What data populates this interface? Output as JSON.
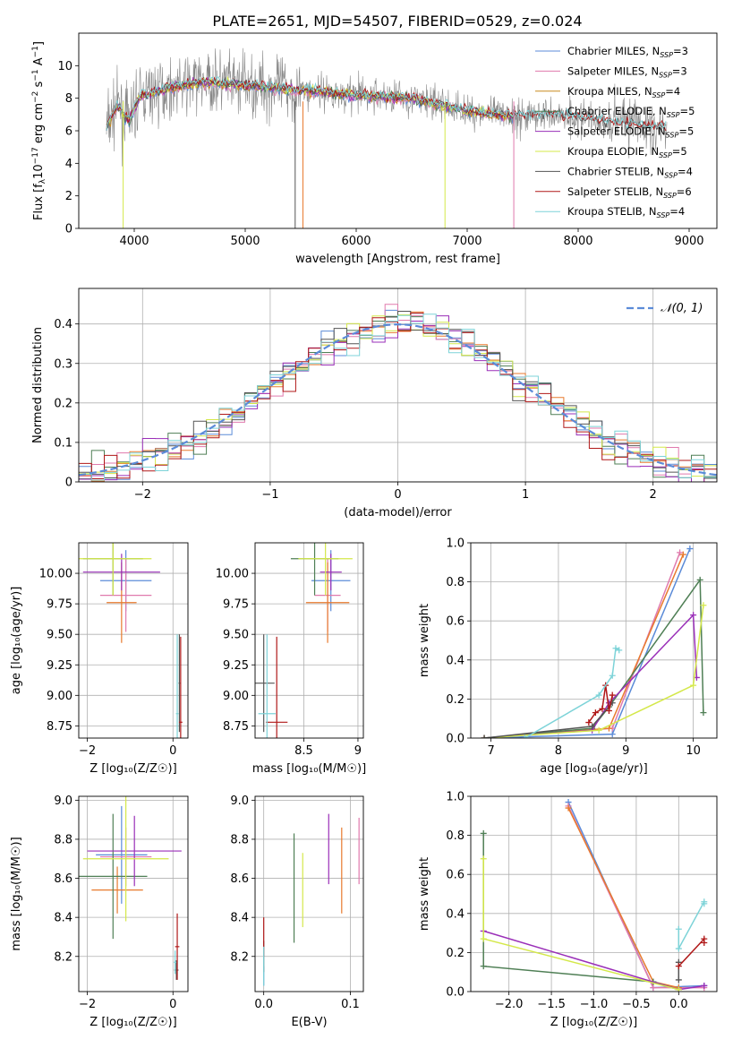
{
  "figure": {
    "title": "PLATE=2651, MJD=54507, FIBERID=0529, z=0.024"
  },
  "colors": {
    "Chabrier MILES": "#5b8bd8",
    "Salpeter MILES": "#e07aad",
    "Kroupa MILES": "#c98a1e",
    "Chabrier ELODIE": "#4f7f55",
    "Salpeter ELODIE": "#9a2fb8",
    "Kroupa ELODIE": "#d4e84a",
    "Chabrier STELIB": "#555555",
    "Salpeter STELIB": "#b01818",
    "Kroupa STELIB": "#7dd3d8",
    "data": "#888888",
    "normal_curve": "#5b8bd8",
    "orange_model": "#e87a2e"
  },
  "chart_data": [
    {
      "id": "spectrum",
      "type": "line",
      "xlabel": "wavelength [Angstrom, rest frame]",
      "ylabel_parts": [
        "Flux [f",
        "λ",
        "10",
        "−17",
        " erg cm",
        "−2",
        " s",
        "−1",
        " A",
        "−1",
        "]"
      ],
      "xlim": [
        3500,
        9250
      ],
      "ylim": [
        0,
        12
      ],
      "xticks": [
        4000,
        5000,
        6000,
        7000,
        8000,
        9000
      ],
      "yticks": [
        0,
        2,
        4,
        6,
        8,
        10
      ],
      "grid": false,
      "legend": "top-right",
      "legend_entries": [
        {
          "name": "Chabrier MILES",
          "nssp": "3"
        },
        {
          "name": "Salpeter MILES",
          "nssp": "3"
        },
        {
          "name": "Kroupa MILES",
          "nssp": "4"
        },
        {
          "name": "Chabrier ELODIE",
          "nssp": "5"
        },
        {
          "name": "Salpeter ELODIE",
          "nssp": "5"
        },
        {
          "name": "Kroupa ELODIE",
          "nssp": "5"
        },
        {
          "name": "Chabrier STELIB",
          "nssp": "4"
        },
        {
          "name": "Salpeter STELIB",
          "nssp": "6"
        },
        {
          "name": "Kroupa STELIB",
          "nssp": "4"
        }
      ],
      "nssp_label": "N",
      "nssp_sub": "SSP",
      "continuum": [
        [
          3750,
          6.2
        ],
        [
          3850,
          7.6
        ],
        [
          3950,
          6.6
        ],
        [
          4050,
          8.1
        ],
        [
          4300,
          8.6
        ],
        [
          4600,
          9.0
        ],
        [
          5000,
          8.8
        ],
        [
          5500,
          8.5
        ],
        [
          6000,
          8.2
        ],
        [
          6500,
          8.0
        ],
        [
          7000,
          7.2
        ],
        [
          7400,
          6.9
        ],
        [
          7800,
          7.0
        ],
        [
          8200,
          6.6
        ],
        [
          8600,
          6.3
        ],
        [
          9000,
          6.1
        ]
      ]
    },
    {
      "id": "residuals",
      "type": "histogram",
      "xlabel": "(data-model)/error",
      "ylabel": "Normed distribution",
      "xlim": [
        -2.5,
        2.5
      ],
      "ylim": [
        0,
        0.49
      ],
      "xticks": [
        -2,
        -1,
        0,
        1,
        2
      ],
      "yticks": [
        0.0,
        0.1,
        0.2,
        0.3,
        0.4
      ],
      "grid": true,
      "legend": "top-right",
      "legend_label": "𝒩(0, 1)",
      "bin_width": 0.1,
      "reference_curve": "gaussian mean 0 sigma 1"
    },
    {
      "id": "age-vs-Z",
      "type": "errorbar",
      "xlabel": "Z [log₁₀(Z/Z☉)]",
      "ylabel": "age  [log₁₀(age/yr)]",
      "xlim": [
        -2.2,
        0.35
      ],
      "ylim": [
        8.65,
        10.25
      ],
      "xticks": [
        -2,
        0
      ],
      "yticks": [
        8.75,
        9.0,
        9.25,
        9.5,
        9.75,
        10.0
      ],
      "ytick_labels": [
        "8.75",
        "9.00",
        "9.25",
        "9.50",
        "9.75",
        "10.00"
      ],
      "grid": true,
      "points": [
        {
          "series": "Chabrier MILES",
          "x": -1.1,
          "xerr": 0.6,
          "y": 9.94,
          "yerr": 0.25
        },
        {
          "series": "Salpeter MILES",
          "x": -1.1,
          "xerr": 0.6,
          "y": 9.82,
          "yerr": 0.3
        },
        {
          "series": "Kroupa MILES",
          "x": -1.2,
          "xerr": 0.35,
          "y": 9.76,
          "yerr": 0.33
        },
        {
          "series": "Chabrier ELODIE",
          "x": -1.4,
          "xerr": 0.7,
          "y": 10.12,
          "yerr": 0.3
        },
        {
          "series": "Salpeter ELODIE",
          "x": -1.2,
          "xerr": 0.9,
          "y": 10.01,
          "yerr": 0.15
        },
        {
          "series": "Kroupa ELODIE",
          "x": -1.4,
          "xerr": 0.9,
          "y": 10.12,
          "yerr": 0.3
        },
        {
          "series": "Chabrier STELIB",
          "x": 0.15,
          "xerr": 0.02,
          "y": 9.1,
          "yerr": 0.4
        },
        {
          "series": "Salpeter STELIB",
          "x": 0.18,
          "xerr": 0.04,
          "y": 8.78,
          "yerr": 0.7
        },
        {
          "series": "Kroupa STELIB",
          "x": 0.1,
          "xerr": 0.03,
          "y": 8.85,
          "yerr": 0.65
        }
      ]
    },
    {
      "id": "age-vs-mass",
      "type": "errorbar",
      "xlabel": "mass [log₁₀(M/M☉)]",
      "ylabel": "",
      "xlim": [
        8.05,
        9.05
      ],
      "ylim": [
        8.65,
        10.25
      ],
      "xticks": [
        8.5,
        9.0
      ],
      "yticks": [
        8.75,
        9.0,
        9.25,
        9.5,
        9.75,
        10.0
      ],
      "ytick_labels": [
        "8.75",
        "9.00",
        "9.25",
        "9.50",
        "9.75",
        "10.00"
      ],
      "grid": true,
      "points": [
        {
          "series": "Chabrier MILES",
          "x": 8.75,
          "xerr": 0.18,
          "y": 9.94,
          "yerr": 0.25
        },
        {
          "series": "Salpeter MILES",
          "x": 8.72,
          "xerr": 0.12,
          "y": 9.82,
          "yerr": 0.3
        },
        {
          "series": "Kroupa MILES",
          "x": 8.72,
          "xerr": 0.2,
          "y": 9.76,
          "yerr": 0.33
        },
        {
          "series": "Chabrier ELODIE",
          "x": 8.6,
          "xerr": 0.22,
          "y": 10.12,
          "yerr": 0.3
        },
        {
          "series": "Salpeter ELODIE",
          "x": 8.75,
          "xerr": 0.1,
          "y": 10.01,
          "yerr": 0.15
        },
        {
          "series": "Kroupa ELODIE",
          "x": 8.7,
          "xerr": 0.25,
          "y": 10.12,
          "yerr": 0.3
        },
        {
          "series": "Chabrier STELIB",
          "x": 8.13,
          "xerr": 0.1,
          "y": 9.1,
          "yerr": 0.4
        },
        {
          "series": "Salpeter STELIB",
          "x": 8.25,
          "xerr": 0.1,
          "y": 8.78,
          "yerr": 0.7
        },
        {
          "series": "Kroupa STELIB",
          "x": 8.16,
          "xerr": 0.08,
          "y": 8.85,
          "yerr": 0.65
        }
      ]
    },
    {
      "id": "weight-vs-age",
      "type": "line",
      "xlabel": "age  [log₁₀(age/yr)]",
      "ylabel": "mass weight",
      "xlim": [
        6.7,
        10.35
      ],
      "ylim": [
        0,
        1.0
      ],
      "xticks": [
        7,
        8,
        9,
        10
      ],
      "yticks": [
        0.0,
        0.2,
        0.4,
        0.6,
        0.8,
        1.0
      ],
      "grid": true,
      "series": [
        {
          "name": "Chabrier MILES",
          "points": [
            [
              6.9,
              0.0
            ],
            [
              8.8,
              0.02
            ],
            [
              9.95,
              0.97
            ]
          ]
        },
        {
          "name": "Salpeter MILES",
          "points": [
            [
              6.9,
              0.0
            ],
            [
              8.8,
              0.05
            ],
            [
              9.8,
              0.95
            ]
          ]
        },
        {
          "name": "Kroupa MILES",
          "points": [
            [
              6.9,
              0.0
            ],
            [
              8.75,
              0.05
            ],
            [
              9.85,
              0.94
            ]
          ]
        },
        {
          "name": "Chabrier ELODIE",
          "points": [
            [
              6.9,
              0.0
            ],
            [
              8.5,
              0.05
            ],
            [
              8.75,
              0.16
            ],
            [
              10.1,
              0.81
            ],
            [
              10.15,
              0.13
            ]
          ]
        },
        {
          "name": "Salpeter ELODIE",
          "points": [
            [
              6.9,
              0.0
            ],
            [
              8.5,
              0.04
            ],
            [
              8.75,
              0.18
            ],
            [
              10.0,
              0.63
            ],
            [
              10.05,
              0.31
            ]
          ]
        },
        {
          "name": "Kroupa ELODIE",
          "points": [
            [
              6.9,
              0.0
            ],
            [
              8.6,
              0.04
            ],
            [
              10.0,
              0.27
            ],
            [
              10.15,
              0.68
            ]
          ]
        },
        {
          "name": "Chabrier STELIB",
          "points": [
            [
              6.9,
              0.0
            ],
            [
              8.5,
              0.06
            ],
            [
              8.8,
              0.18
            ]
          ]
        },
        {
          "name": "Salpeter STELIB",
          "points": [
            [
              8.45,
              0.08
            ],
            [
              8.55,
              0.13
            ],
            [
              8.65,
              0.15
            ],
            [
              8.7,
              0.27
            ],
            [
              8.75,
              0.14
            ],
            [
              8.8,
              0.22
            ]
          ]
        },
        {
          "name": "Kroupa STELIB",
          "points": [
            [
              7.5,
              0.0
            ],
            [
              8.6,
              0.22
            ],
            [
              8.8,
              0.32
            ],
            [
              8.85,
              0.46
            ],
            [
              8.9,
              0.45
            ]
          ]
        }
      ]
    },
    {
      "id": "mass-vs-Z",
      "type": "errorbar",
      "xlabel": "Z [log₁₀(Z/Z☉)]",
      "ylabel": "mass [log₁₀(M/M☉)]",
      "xlim": [
        -2.2,
        0.35
      ],
      "ylim": [
        8.02,
        9.02
      ],
      "xticks": [
        -2,
        0
      ],
      "yticks": [
        8.2,
        8.4,
        8.6,
        8.8,
        9.0
      ],
      "grid": true,
      "points": [
        {
          "series": "Chabrier MILES",
          "x": -1.2,
          "xerr": 0.6,
          "y": 8.72,
          "yerr": 0.25
        },
        {
          "series": "Salpeter MILES",
          "x": -1.1,
          "xerr": 0.6,
          "y": 8.71,
          "yerr": 0.15
        },
        {
          "series": "Kroupa MILES",
          "x": -1.3,
          "xerr": 0.6,
          "y": 8.54,
          "yerr": 0.12
        },
        {
          "series": "Chabrier ELODIE",
          "x": -1.4,
          "xerr": 0.8,
          "y": 8.61,
          "yerr": 0.32
        },
        {
          "series": "Salpeter ELODIE",
          "x": -0.9,
          "xerr": 1.1,
          "y": 8.74,
          "yerr": 0.18
        },
        {
          "series": "Kroupa ELODIE",
          "x": -1.1,
          "xerr": 1.0,
          "y": 8.7,
          "yerr": 0.32
        },
        {
          "series": "Chabrier STELIB",
          "x": 0.08,
          "xerr": 0.05,
          "y": 8.13,
          "yerr": 0.05
        },
        {
          "series": "Salpeter STELIB",
          "x": 0.1,
          "xerr": 0.05,
          "y": 8.25,
          "yerr": 0.17
        },
        {
          "series": "Kroupa STELIB",
          "x": 0.05,
          "xerr": 0.03,
          "y": 8.17,
          "yerr": 0.06
        }
      ]
    },
    {
      "id": "mass-vs-EBV",
      "type": "errorbar",
      "xlabel": "E(B-V)",
      "ylabel": "",
      "xlim": [
        -0.01,
        0.115
      ],
      "ylim": [
        8.02,
        9.02
      ],
      "xticks": [
        0.0,
        0.1
      ],
      "xtick_labels": [
        "0.0",
        "0.1"
      ],
      "yticks": [
        8.2,
        8.4,
        8.6,
        8.8,
        9.0
      ],
      "grid": true,
      "points": [
        {
          "series": "Chabrier MILES",
          "x": 0.0,
          "xerr": 0,
          "y": 8.1,
          "yerr": 0.05
        },
        {
          "series": "Salpeter MILES",
          "x": 0.11,
          "xerr": 0,
          "y": 8.74,
          "yerr": 0.17
        },
        {
          "series": "Kroupa MILES",
          "x": 0.09,
          "xerr": 0,
          "y": 8.64,
          "yerr": 0.22
        },
        {
          "series": "Chabrier ELODIE",
          "x": 0.035,
          "xerr": 0,
          "y": 8.55,
          "yerr": 0.28
        },
        {
          "series": "Salpeter ELODIE",
          "x": 0.075,
          "xerr": 0,
          "y": 8.75,
          "yerr": 0.18
        },
        {
          "series": "Kroupa ELODIE",
          "x": 0.045,
          "xerr": 0,
          "y": 8.54,
          "yerr": 0.19
        },
        {
          "series": "Chabrier STELIB",
          "x": 0.0,
          "xerr": 0,
          "y": 8.2,
          "yerr": 0.08
        },
        {
          "series": "Salpeter STELIB",
          "x": 0.0,
          "xerr": 0,
          "y": 8.3,
          "yerr": 0.1
        },
        {
          "series": "Kroupa STELIB",
          "x": 0.0,
          "xerr": 0,
          "y": 8.15,
          "yerr": 0.1
        }
      ]
    },
    {
      "id": "weight-vs-Z",
      "type": "line",
      "xlabel": "Z [log₁₀(Z/Z☉)]",
      "ylabel": "mass weight",
      "xlim": [
        -2.45,
        0.45
      ],
      "ylim": [
        0,
        1.0
      ],
      "xticks": [
        -2.0,
        -1.5,
        -1.0,
        -0.5,
        0.0
      ],
      "xtick_labels": [
        "−2.0",
        "−1.5",
        "−1.0",
        "−0.5",
        "0.0"
      ],
      "yticks": [
        0.0,
        0.2,
        0.4,
        0.6,
        0.8,
        1.0
      ],
      "grid": true,
      "series": [
        {
          "name": "Chabrier MILES",
          "points": [
            [
              -1.3,
              0.97
            ],
            [
              -0.3,
              0.02
            ],
            [
              0.3,
              0.03
            ]
          ]
        },
        {
          "name": "Salpeter MILES",
          "points": [
            [
              -1.3,
              0.95
            ],
            [
              -0.3,
              0.02
            ],
            [
              0.3,
              0.02
            ]
          ]
        },
        {
          "name": "Kroupa MILES",
          "points": [
            [
              -1.3,
              0.94
            ],
            [
              -0.3,
              0.05
            ],
            [
              0.0,
              0.02
            ]
          ]
        },
        {
          "name": "Chabrier ELODIE",
          "points": [
            [
              -2.3,
              0.81
            ],
            [
              -2.3,
              0.13
            ],
            [
              -0.3,
              0.05
            ],
            [
              0.0,
              0.01
            ]
          ]
        },
        {
          "name": "Salpeter ELODIE",
          "points": [
            [
              -2.3,
              0.31
            ],
            [
              0.0,
              0.01
            ],
            [
              0.3,
              0.03
            ]
          ]
        },
        {
          "name": "Kroupa ELODIE",
          "points": [
            [
              -2.3,
              0.68
            ],
            [
              -2.3,
              0.27
            ],
            [
              0.0,
              0.01
            ]
          ]
        },
        {
          "name": "Chabrier STELIB",
          "points": [
            [
              0.0,
              0.06
            ],
            [
              0.0,
              0.15
            ]
          ]
        },
        {
          "name": "Salpeter STELIB",
          "points": [
            [
              0.0,
              0.13
            ],
            [
              0.3,
              0.27
            ],
            [
              0.3,
              0.25
            ]
          ]
        },
        {
          "name": "Kroupa STELIB",
          "points": [
            [
              0.0,
              0.32
            ],
            [
              0.0,
              0.22
            ],
            [
              0.3,
              0.46
            ],
            [
              0.3,
              0.45
            ]
          ]
        }
      ]
    }
  ]
}
